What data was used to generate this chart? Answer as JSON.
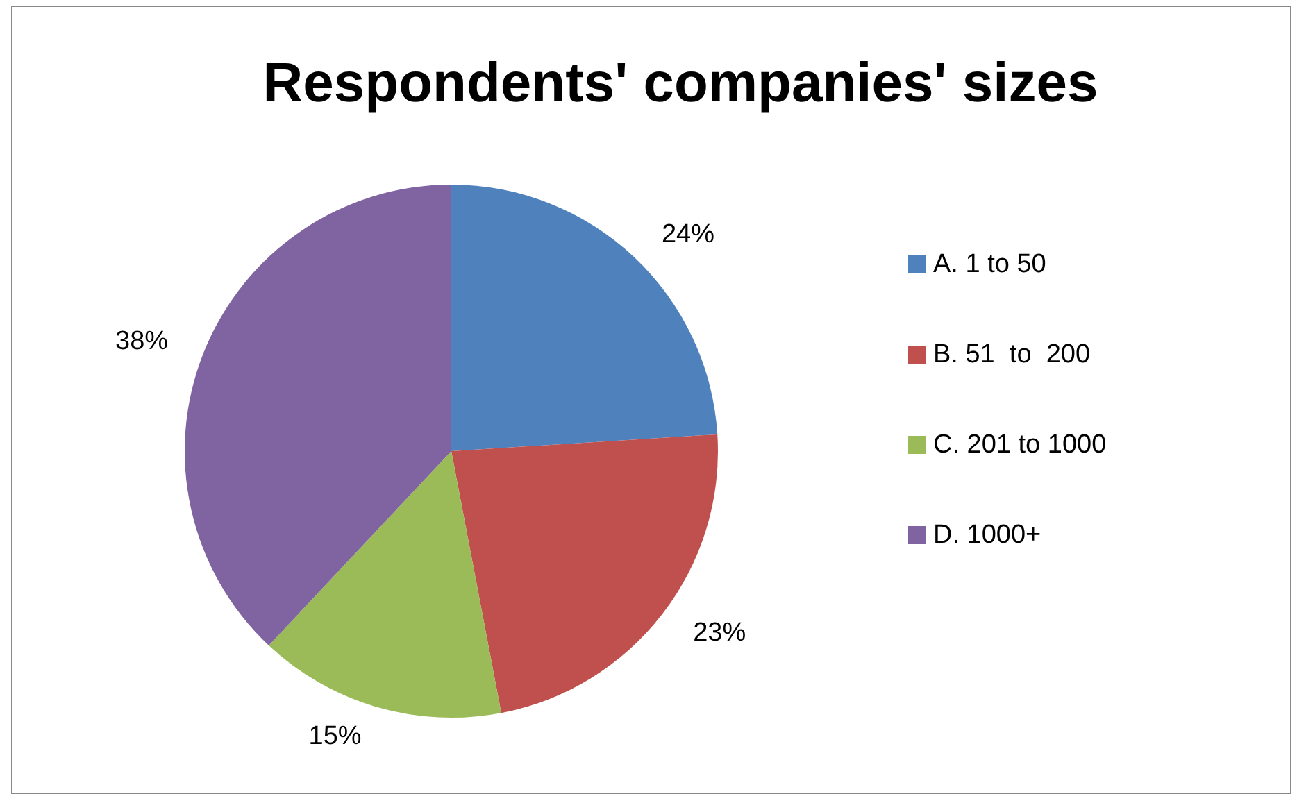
{
  "chart_data": {
    "type": "pie",
    "title": "Respondents' companies' sizes",
    "categories": [
      "A. 1 to 50",
      "B. 51  to  200",
      "C. 201 to 1000",
      "D. 1000+"
    ],
    "values": [
      24,
      23,
      15,
      38
    ],
    "colors": [
      "#4f81bd",
      "#c0504d",
      "#9bbb59",
      "#8064a2"
    ],
    "value_labels": [
      "24%",
      "23%",
      "15%",
      "38%"
    ],
    "legend": "right"
  }
}
